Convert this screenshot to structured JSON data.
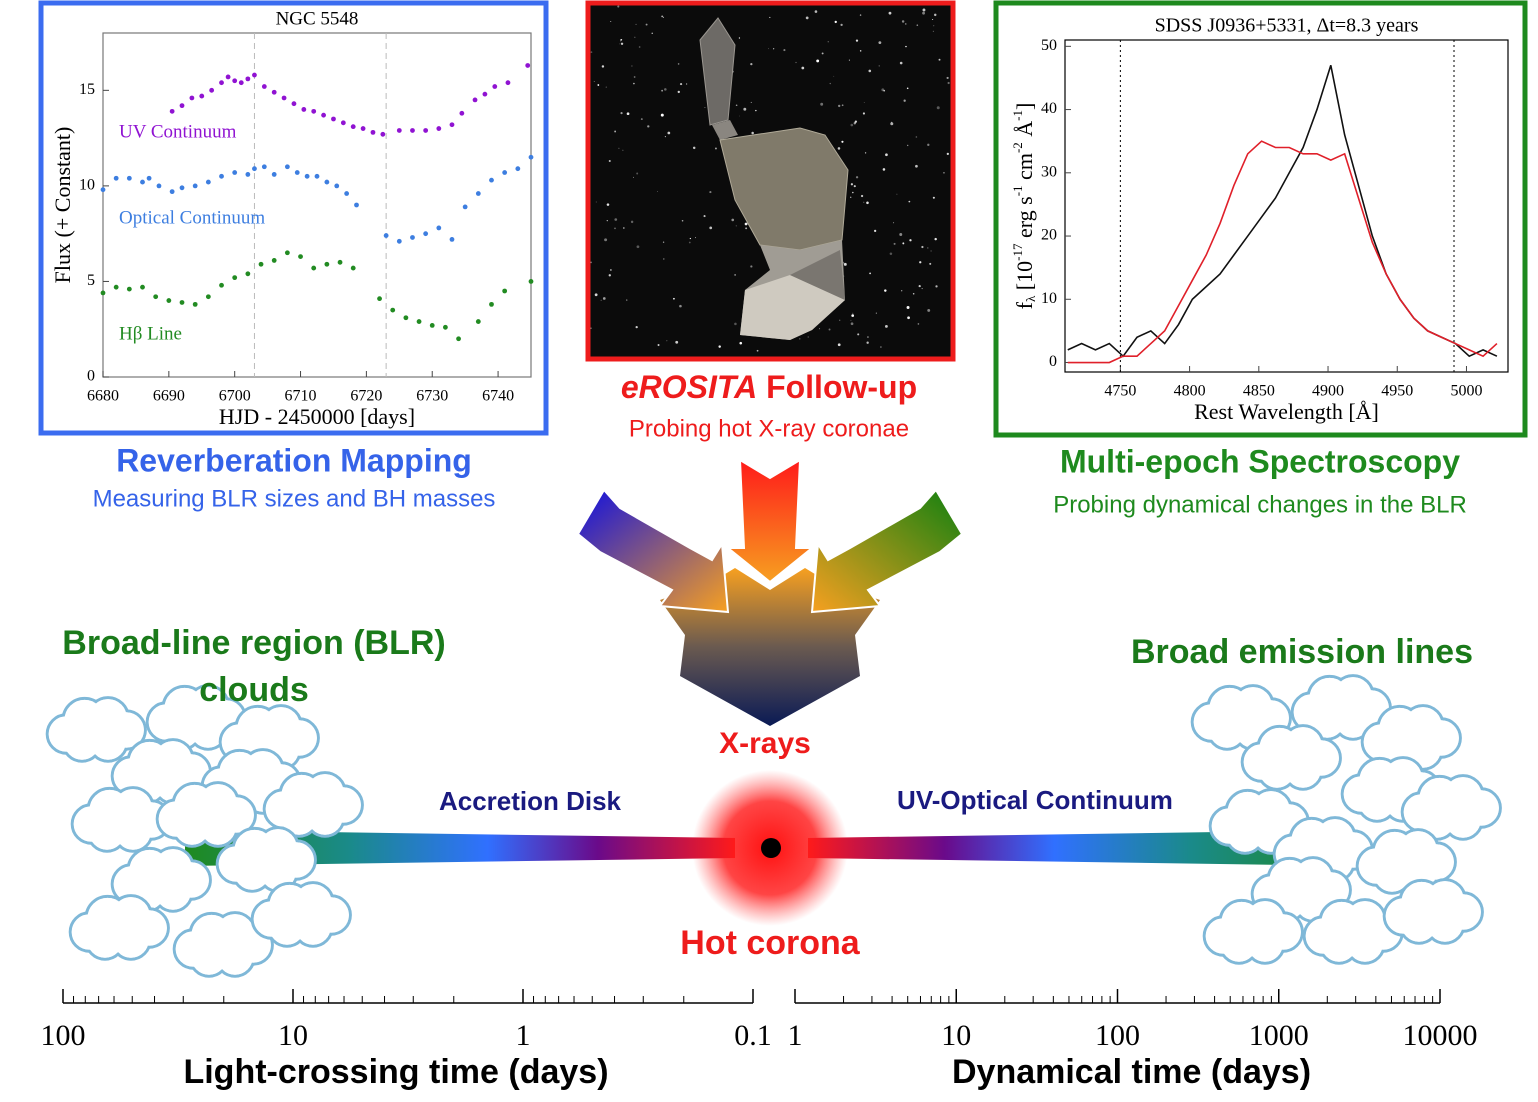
{
  "chart_data": [
    {
      "type": "scatter",
      "title": "NGC 5548",
      "xlabel": "HJD - 2450000 [days]",
      "ylabel": "Flux (+ Constant)",
      "xlim": [
        6680,
        6745
      ],
      "ylim": [
        0,
        18
      ],
      "xticks": [
        6680,
        6690,
        6700,
        6710,
        6720,
        6730,
        6740
      ],
      "yticks": [
        0,
        5,
        10,
        15
      ],
      "vlines": [
        6703,
        6723
      ],
      "series": [
        {
          "name": "UV Continuum",
          "color": "#9013d2",
          "x": [
            6690.5,
            6692,
            6693.5,
            6695,
            6696.5,
            6698,
            6699,
            6700,
            6701,
            6702,
            6703,
            6704.5,
            6706,
            6707.5,
            6709,
            6710.5,
            6712,
            6713.5,
            6715,
            6716.5,
            6718,
            6719.5,
            6721,
            6722.5,
            6725,
            6727,
            6729,
            6731,
            6733,
            6734.5,
            6736.5,
            6738,
            6739.5,
            6741.5,
            6744.5
          ],
          "values": [
            13.9,
            14.2,
            14.6,
            14.7,
            15,
            15.4,
            15.7,
            15.5,
            15.4,
            15.6,
            15.8,
            15.2,
            14.9,
            14.6,
            14.3,
            14,
            13.9,
            13.7,
            13.5,
            13.3,
            13.1,
            13,
            12.8,
            12.7,
            12.9,
            12.9,
            12.9,
            13,
            13.2,
            13.8,
            14.5,
            14.8,
            15.2,
            15.4,
            16.3
          ]
        },
        {
          "name": "Optical Continuum",
          "color": "#3d7ee0",
          "x": [
            6680,
            6682,
            6684,
            6686,
            6687,
            6688.5,
            6690.5,
            6692,
            6694,
            6696,
            6698,
            6700,
            6702,
            6703,
            6704.5,
            6706,
            6708,
            6709.5,
            6711,
            6712.5,
            6714,
            6715.5,
            6717,
            6718.5,
            6723,
            6725,
            6727,
            6729,
            6731,
            6733,
            6735,
            6737,
            6739,
            6741,
            6743,
            6745
          ],
          "values": [
            9.8,
            10.4,
            10.4,
            10.2,
            10.4,
            10,
            9.7,
            9.9,
            10,
            10.2,
            10.5,
            10.7,
            10.6,
            10.9,
            11,
            10.6,
            11,
            10.7,
            10.5,
            10.5,
            10.2,
            10,
            9.6,
            9,
            7.4,
            7.1,
            7.3,
            7.5,
            7.8,
            7.2,
            8.9,
            9.6,
            10.3,
            10.7,
            10.9,
            11.5
          ]
        },
        {
          "name": "Hβ Line",
          "color": "#228b22",
          "x": [
            6680,
            6682,
            6684,
            6686,
            6688,
            6690,
            6692,
            6694,
            6696,
            6698,
            6700,
            6702,
            6704,
            6706,
            6708,
            6710,
            6712,
            6714,
            6716,
            6718,
            6722,
            6724,
            6726,
            6728,
            6730,
            6732,
            6734,
            6737,
            6739,
            6741,
            6745
          ],
          "values": [
            4.4,
            4.7,
            4.6,
            4.7,
            4.2,
            4,
            3.9,
            3.8,
            4.2,
            4.8,
            5.2,
            5.4,
            5.9,
            6.1,
            6.5,
            6.3,
            5.7,
            5.9,
            6,
            5.7,
            4.1,
            3.5,
            3.1,
            2.9,
            2.7,
            2.6,
            2,
            2.9,
            3.8,
            4.5,
            5
          ]
        }
      ]
    },
    {
      "type": "line",
      "title": "SDSS J0936+5331, Δt=8.3 years",
      "xlabel": "Rest Wavelength [Å]",
      "ylabel": [
        "f",
        "λ",
        " [10",
        "-17",
        " erg s",
        "-1",
        " cm",
        "-2",
        " Å",
        "-1",
        "]"
      ],
      "xlim": [
        4710,
        5030
      ],
      "ylim": [
        -1.5,
        51
      ],
      "xticks": [
        4750,
        4800,
        4850,
        4900,
        4950,
        5000
      ],
      "yticks": [
        0,
        10,
        20,
        30,
        40,
        50
      ],
      "vlines": [
        4750,
        4991
      ],
      "x": [
        4712,
        4722,
        4732,
        4742,
        4752,
        4762,
        4772,
        4782,
        4792,
        4802,
        4812,
        4822,
        4832,
        4842,
        4852,
        4862,
        4872,
        4882,
        4892,
        4902,
        4912,
        4922,
        4932,
        4942,
        4952,
        4962,
        4972,
        4982,
        4992,
        5002,
        5012,
        5022
      ],
      "series": [
        {
          "color": "#111111",
          "values": [
            2,
            3,
            2,
            3,
            1,
            4,
            5,
            3,
            6,
            10,
            12,
            14,
            17,
            20,
            23,
            26,
            30,
            34,
            40,
            47,
            36,
            28,
            20,
            14,
            10,
            7,
            5,
            4,
            3,
            1,
            2,
            1
          ]
        },
        {
          "color": "#e0202a",
          "values": [
            0,
            0,
            0,
            0,
            1,
            1,
            3,
            5,
            9,
            13,
            17,
            22,
            28,
            33,
            35,
            34,
            34,
            33,
            33,
            32,
            33,
            26,
            19,
            14,
            10,
            7,
            5,
            4,
            3,
            2,
            1,
            3
          ]
        }
      ]
    }
  ],
  "panels": {
    "left": {
      "title": "Reverberation Mapping",
      "subtitle": "Measuring BLR sizes and BH masses"
    },
    "middle": {
      "title": [
        "eROSITA",
        " Follow-up"
      ],
      "subtitle": "Probing hot X-ray coronae"
    },
    "right": {
      "title": "Multi-epoch Spectroscopy",
      "subtitle": "Probing dynamical changes in the BLR"
    }
  },
  "diagram": {
    "blr": [
      "Broad-line region (BLR)",
      "clouds"
    ],
    "lines": "Broad emission lines",
    "xrays": "X-rays",
    "disk": "Accretion Disk",
    "continuum": "UV-Optical Continuum",
    "corona": "Hot corona"
  },
  "scales": [
    {
      "label": "Light-crossing time (days)",
      "log": true,
      "xlim": [
        100,
        0.1
      ],
      "xticks": [
        100,
        10,
        1,
        0.1
      ]
    },
    {
      "label": "Dynamical time (days)",
      "log": true,
      "xlim": [
        1,
        10000
      ],
      "xticks": [
        1,
        10,
        100,
        1000,
        10000
      ]
    }
  ]
}
